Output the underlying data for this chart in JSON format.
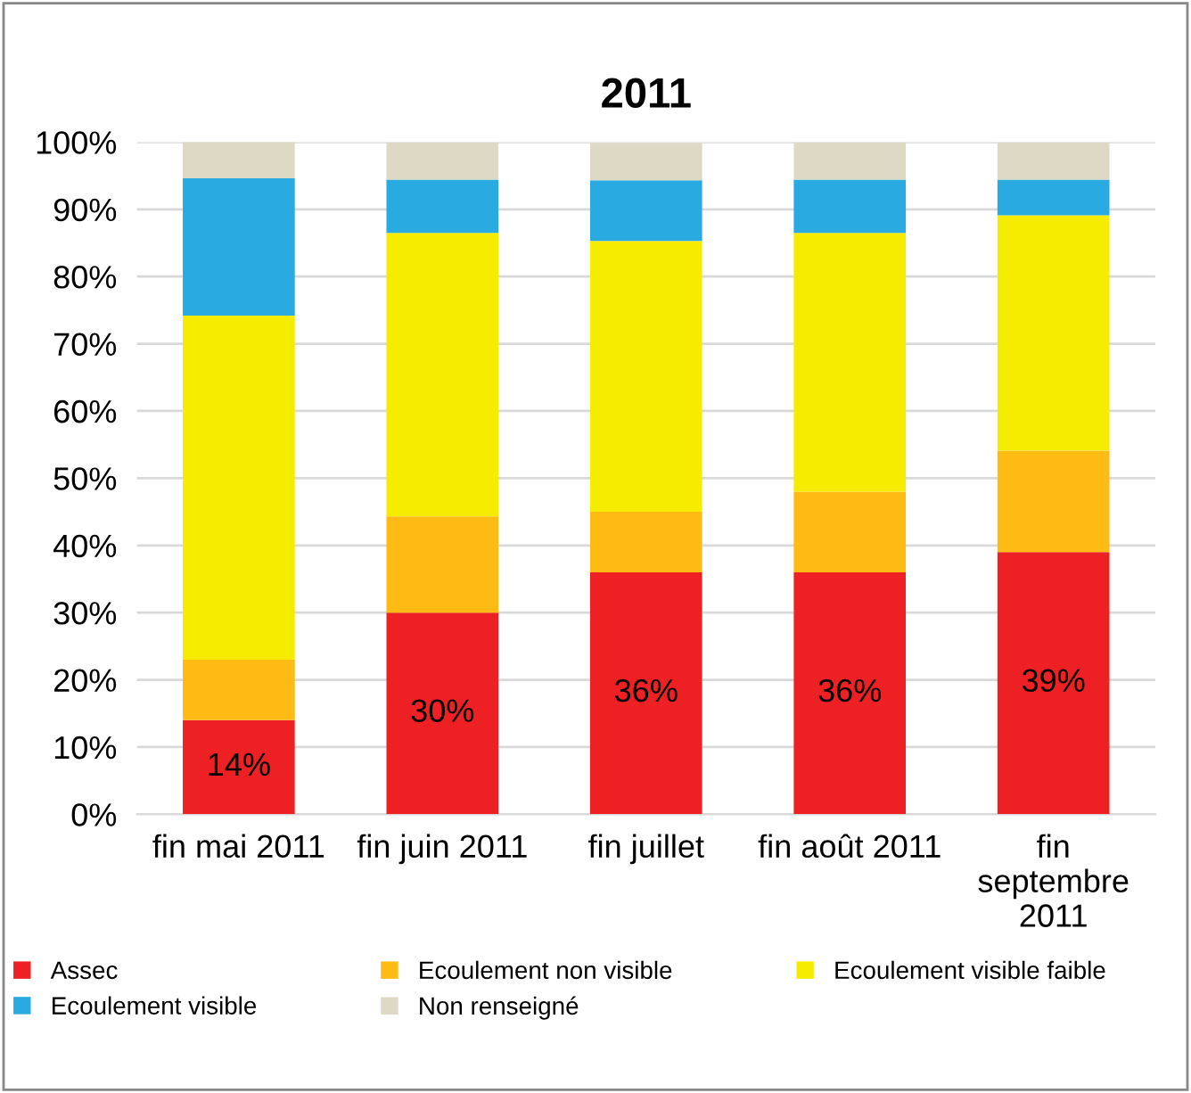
{
  "chart_data": {
    "type": "bar",
    "title": "2011",
    "stacked": true,
    "categories": [
      "fin mai 2011",
      "fin juin 2011",
      "fin juillet",
      "fin août 2011",
      "fin\nseptembre\n2011"
    ],
    "series": [
      {
        "name": "Assec",
        "color": "#ed2024",
        "values": [
          14,
          30,
          36,
          36,
          39
        ],
        "value_labels": [
          "14%",
          "30%",
          "36%",
          "36%",
          "39%"
        ]
      },
      {
        "name": "Ecoulement non visible",
        "color": "#fdbb13",
        "values": [
          9,
          14.3,
          9,
          12,
          15.1
        ]
      },
      {
        "name": "Ecoulement visible faible",
        "color": "#f5ec00",
        "values": [
          51.2,
          42.2,
          40.3,
          38.5,
          35
        ]
      },
      {
        "name": "Ecoulement visible",
        "color": "#29abe2",
        "values": [
          20.4,
          7.9,
          9,
          7.9,
          5.3
        ]
      },
      {
        "name": "Non renseigné",
        "color": "#ddd9c4",
        "values": [
          5.6,
          5.6,
          5.6,
          5.6,
          5.6
        ]
      }
    ],
    "ylim": [
      0,
      100
    ],
    "yticks": [
      {
        "value": 0,
        "label": "0%"
      },
      {
        "value": 10,
        "label": "10%"
      },
      {
        "value": 20,
        "label": "20%"
      },
      {
        "value": 30,
        "label": "30%"
      },
      {
        "value": 40,
        "label": "40%"
      },
      {
        "value": 50,
        "label": "50%"
      },
      {
        "value": 60,
        "label": "60%"
      },
      {
        "value": 70,
        "label": "70%"
      },
      {
        "value": 80,
        "label": "80%"
      },
      {
        "value": 90,
        "label": "90%"
      },
      {
        "value": 100,
        "label": "100%"
      }
    ],
    "grid": "y",
    "legend": "bottom"
  }
}
